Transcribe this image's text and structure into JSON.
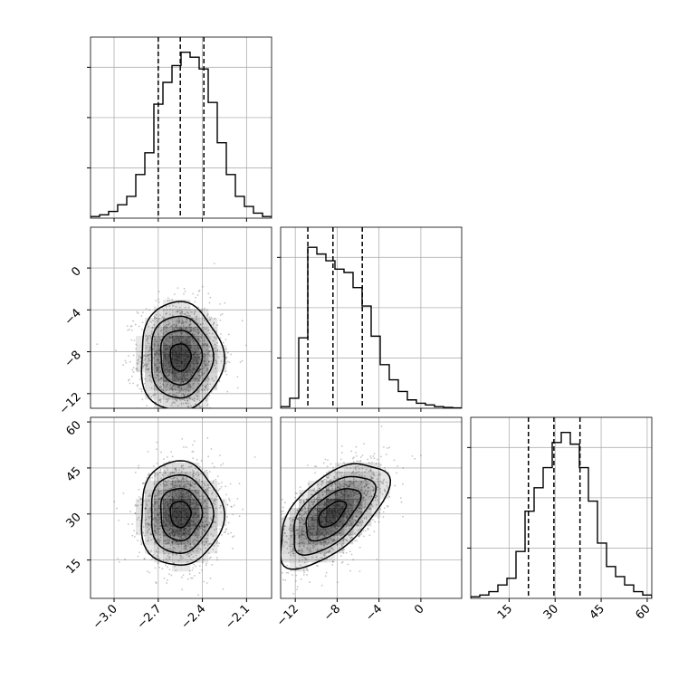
{
  "chart_data": {
    "type": "corner",
    "parameters": [
      {
        "ticks": [
          -3.0,
          -2.7,
          -2.4,
          -2.1
        ],
        "tick_labels": [
          "−3.0",
          "−2.7",
          "−2.4",
          "−2.1"
        ],
        "range": [
          -3.16,
          -1.93
        ],
        "quantiles": [
          -2.7,
          -2.55,
          -2.39
        ]
      },
      {
        "ticks": [
          -12,
          -8,
          -4,
          0
        ],
        "tick_labels": [
          "−12",
          "−8",
          "−4",
          "0"
        ],
        "range": [
          -13.4,
          3.9
        ],
        "quantiles": [
          -10.8,
          -8.4,
          -5.6
        ]
      },
      {
        "ticks": [
          15,
          30,
          45,
          60
        ],
        "tick_labels": [
          "15",
          "30",
          "45",
          "60"
        ],
        "range": [
          2.5,
          61.5
        ],
        "quantiles": [
          21.3,
          29.6,
          38.1
        ]
      }
    ],
    "histograms": [
      {
        "param": 0,
        "counts": [
          0.01,
          0.02,
          0.04,
          0.08,
          0.13,
          0.26,
          0.39,
          0.68,
          0.81,
          0.91,
          0.99,
          0.96,
          0.89,
          0.69,
          0.45,
          0.26,
          0.13,
          0.07,
          0.03,
          0.01
        ]
      },
      {
        "param": 1,
        "counts": [
          0.01,
          0.06,
          0.42,
          0.96,
          0.92,
          0.88,
          0.83,
          0.81,
          0.72,
          0.61,
          0.43,
          0.26,
          0.17,
          0.1,
          0.05,
          0.03,
          0.02,
          0.01,
          0.005,
          0.002
        ]
      },
      {
        "param": 2,
        "counts": [
          0.01,
          0.02,
          0.04,
          0.08,
          0.12,
          0.28,
          0.52,
          0.66,
          0.78,
          0.93,
          0.99,
          0.92,
          0.78,
          0.58,
          0.33,
          0.19,
          0.13,
          0.08,
          0.04,
          0.02
        ]
      }
    ],
    "pairs": [
      {
        "x_param": 0,
        "y_param": 1,
        "center": [
          -2.55,
          -8.5
        ],
        "spread": [
          0.14,
          2.6
        ],
        "correlation": 0.0,
        "contour_levels": [
          0.5,
          1.0,
          1.5,
          2.0
        ]
      },
      {
        "x_param": 0,
        "y_param": 2,
        "center": [
          -2.55,
          30.0
        ],
        "spread": [
          0.14,
          8.5
        ],
        "correlation": 0.0,
        "contour_levels": [
          0.5,
          1.0,
          1.5,
          2.0
        ]
      },
      {
        "x_param": 1,
        "y_param": 2,
        "center": [
          -8.5,
          30.0
        ],
        "spread": [
          2.6,
          8.5
        ],
        "correlation": 0.6,
        "contour_levels": [
          0.5,
          1.0,
          1.5,
          2.0
        ]
      }
    ],
    "grid": true,
    "quantile_line_style": "dashed"
  },
  "colors": {
    "line": "#000000",
    "grid": "#b0b0b0",
    "scatter": "#555555",
    "density": "#000000"
  }
}
